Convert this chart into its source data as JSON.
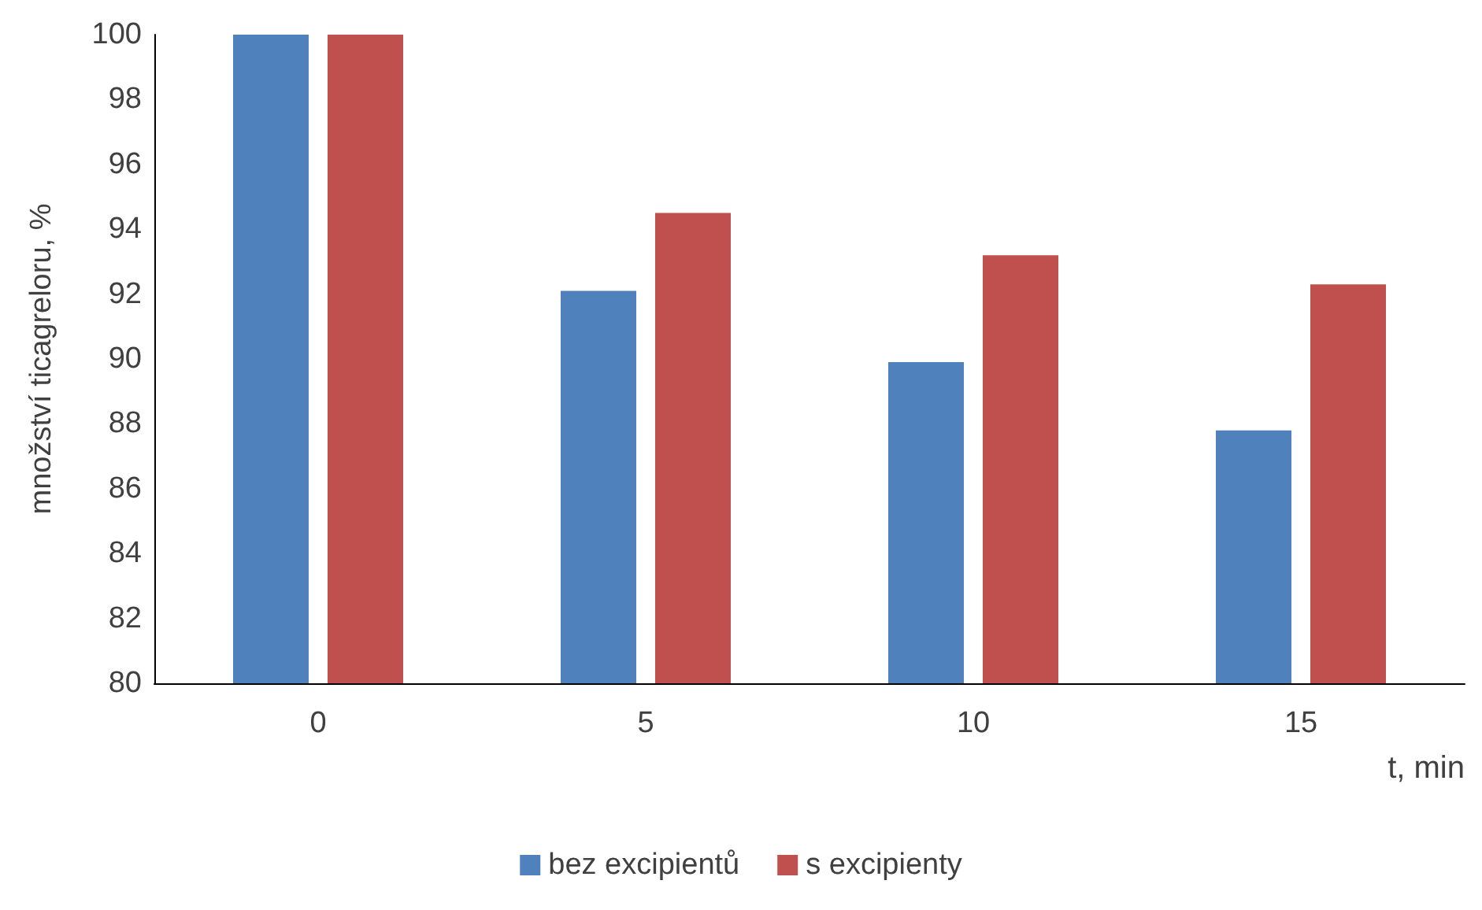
{
  "chart_data": {
    "type": "bar",
    "categories": [
      "0",
      "5",
      "10",
      "15"
    ],
    "series": [
      {
        "name": "bez excipientů",
        "color": "#4f81bd",
        "values": [
          100,
          92.1,
          89.9,
          87.8
        ]
      },
      {
        "name": "s excipienty",
        "color": "#c0504d",
        "values": [
          100,
          94.5,
          93.2,
          92.3
        ]
      }
    ],
    "xlabel": "t, min",
    "ylabel": "množství ticagreloru, %",
    "ylim": [
      80,
      100
    ],
    "yticks": [
      80,
      82,
      84,
      86,
      88,
      90,
      92,
      94,
      96,
      98,
      100
    ],
    "grid": false,
    "legend": "bottom"
  }
}
